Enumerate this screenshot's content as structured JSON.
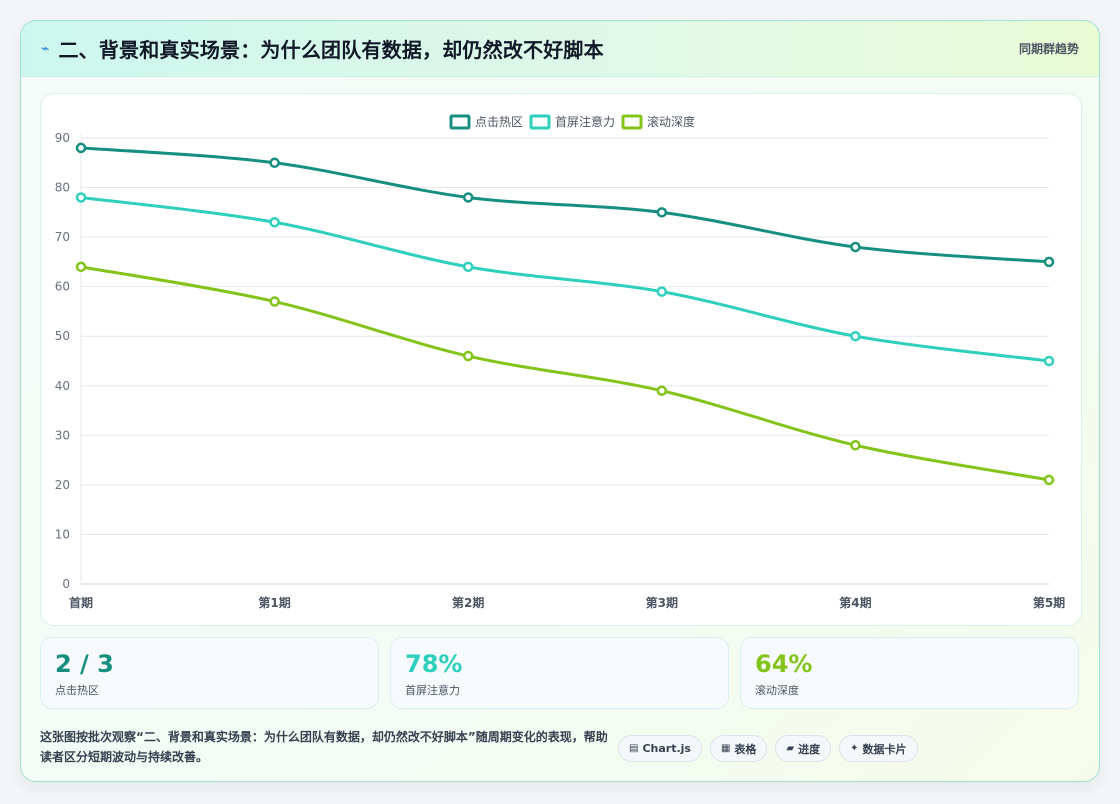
{
  "header": {
    "icon": "lightning-icon",
    "title": "二、背景和真实场景：为什么团队有数据，却仍然改不好脚本",
    "right_label": "同期群趋势"
  },
  "chart_data": {
    "type": "line",
    "categories": [
      "首期",
      "第1期",
      "第2期",
      "第3期",
      "第4期",
      "第5期"
    ],
    "series": [
      {
        "name": "点击热区",
        "color": "#168f80",
        "values": [
          88,
          85,
          78,
          75,
          68,
          65
        ]
      },
      {
        "name": "首屏注意力",
        "color": "#2ecfbd",
        "values": [
          78,
          73,
          64,
          59,
          50,
          45
        ]
      },
      {
        "name": "滚动深度",
        "color": "#84c41a",
        "values": [
          64,
          57,
          46,
          39,
          28,
          21
        ]
      }
    ],
    "ylim": [
      0,
      90
    ],
    "yticks": [
      0,
      10,
      20,
      30,
      40,
      50,
      60,
      70,
      80,
      90
    ],
    "grid": true,
    "legend": "top-center"
  },
  "stats": [
    {
      "value": "2 / 3",
      "label": "点击热区",
      "color": "#168f80"
    },
    {
      "value": "78%",
      "label": "首屏注意力",
      "color": "#2ecfbd"
    },
    {
      "value": "64%",
      "label": "滚动深度",
      "color": "#84c41a"
    }
  ],
  "footer": {
    "text": "这张图按批次观察“二、背景和真实场景：为什么团队有数据，却仍然改不好脚本”随周期变化的表现，帮助读者区分短期波动与持续改善。",
    "tags": [
      {
        "icon": "▤",
        "icon_name": "chart-icon",
        "label": "Chart.js"
      },
      {
        "icon": "▦",
        "icon_name": "table-icon",
        "label": "表格"
      },
      {
        "icon": "▰",
        "icon_name": "progress-icon",
        "label": "进度"
      },
      {
        "icon": "✦",
        "icon_name": "sparkle-icon",
        "label": "数据卡片"
      }
    ]
  }
}
